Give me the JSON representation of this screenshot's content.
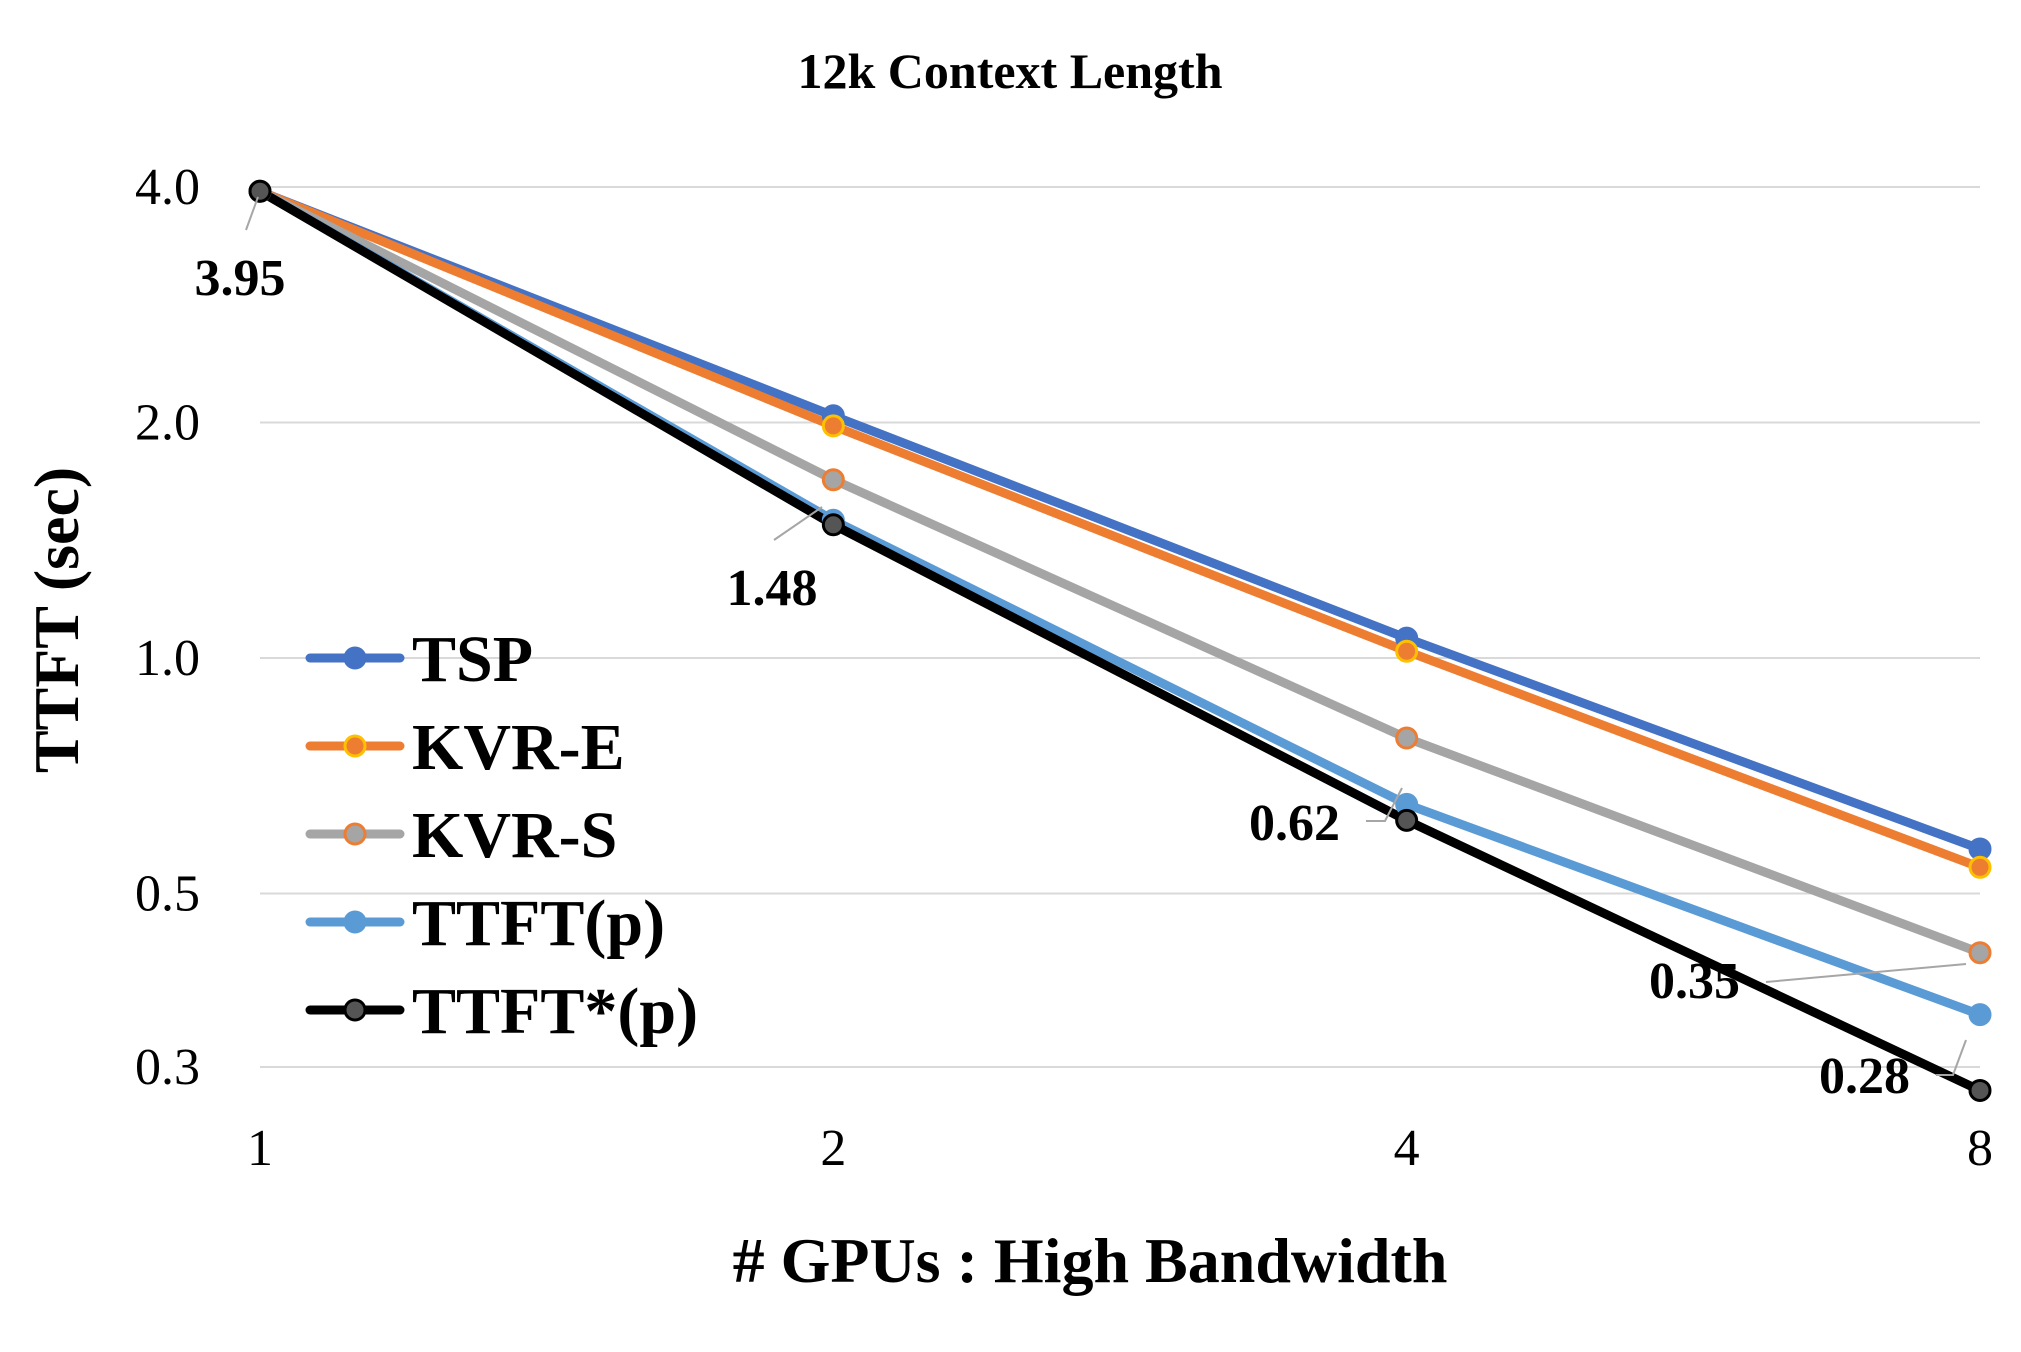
{
  "chart_data": {
    "type": "line",
    "title": "12k Context Length",
    "xlabel": "# GPUs : High Bandwidth",
    "ylabel": "TTFT (sec)",
    "x_scale": "log2",
    "y_scale": "log",
    "categories": [
      "1",
      "2",
      "4",
      "8"
    ],
    "x": [
      1,
      2,
      4,
      8
    ],
    "ylim": [
      0.3,
      4.0
    ],
    "y_ticks": [
      0.3,
      0.5,
      1.0,
      2.0,
      4.0
    ],
    "y_tick_labels": [
      "0.3",
      "0.5",
      "1.0",
      "2.0",
      "4.0"
    ],
    "grid": true,
    "legend_position": "left",
    "series": [
      {
        "name": "TSP",
        "color": "#4472C4",
        "marker_fill": "#4472C4",
        "marker_edge": "#4472C4",
        "values": [
          3.95,
          2.04,
          1.06,
          0.57
        ]
      },
      {
        "name": "KVR-E",
        "color": "#ED7D31",
        "marker_fill": "#ED7D31",
        "marker_edge": "#FFC000",
        "values": [
          3.95,
          1.98,
          1.02,
          0.54
        ]
      },
      {
        "name": "KVR-S",
        "color": "#A5A5A5",
        "marker_fill": "#A5A5A5",
        "marker_edge": "#ED7D31",
        "values": [
          3.95,
          1.69,
          0.79,
          0.42
        ]
      },
      {
        "name": "TTFT(p)",
        "color": "#5B9BD5",
        "marker_fill": "#5B9BD5",
        "marker_edge": "#5B9BD5",
        "values": [
          3.95,
          1.5,
          0.65,
          0.35
        ]
      },
      {
        "name": "TTFT*(p)",
        "color": "#000000",
        "marker_fill": "#555555",
        "marker_edge": "#000000",
        "values": [
          3.95,
          1.48,
          0.62,
          0.28
        ]
      }
    ],
    "annotations": [
      {
        "text": "3.95",
        "series": "TTFT*(p)",
        "x": 1
      },
      {
        "text": "1.48",
        "series": "TTFT*(p)",
        "x": 2
      },
      {
        "text": "0.62",
        "series": "TTFT*(p)",
        "x": 4
      },
      {
        "text": "0.35",
        "series": "TTFT(p)",
        "x": 8
      },
      {
        "text": "0.28",
        "series": "TTFT*(p)",
        "x": 8
      }
    ]
  }
}
